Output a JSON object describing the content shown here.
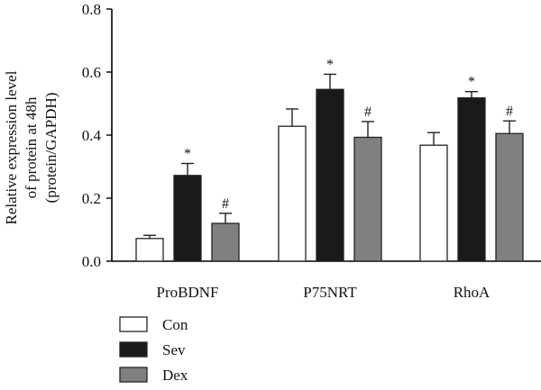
{
  "chart_data": {
    "type": "bar",
    "ylabel_lines": [
      "Relative expression level",
      "of protein at 48h",
      "(protein/GAPDH)"
    ],
    "ylim": [
      0,
      0.8
    ],
    "yticks": [
      "0.0",
      "0.2",
      "0.4",
      "0.6",
      "0.8"
    ],
    "categories": [
      "ProBDNF",
      "P75NRT",
      "RhoA"
    ],
    "series": [
      {
        "name": "Con",
        "color": "#ffffff",
        "values": [
          0.072,
          0.428,
          0.368
        ],
        "errors": [
          0.01,
          0.055,
          0.04
        ],
        "markers": [
          "",
          "",
          ""
        ]
      },
      {
        "name": "Sev",
        "color": "#1a1a1a",
        "values": [
          0.272,
          0.545,
          0.518
        ],
        "errors": [
          0.038,
          0.048,
          0.02
        ],
        "markers": [
          "*",
          "*",
          "*"
        ]
      },
      {
        "name": "Dex",
        "color": "#808080",
        "values": [
          0.12,
          0.393,
          0.405
        ],
        "errors": [
          0.032,
          0.05,
          0.04
        ],
        "markers": [
          "#",
          "#",
          "#"
        ]
      }
    ],
    "legend_position": "bottom-left",
    "grid": false
  }
}
